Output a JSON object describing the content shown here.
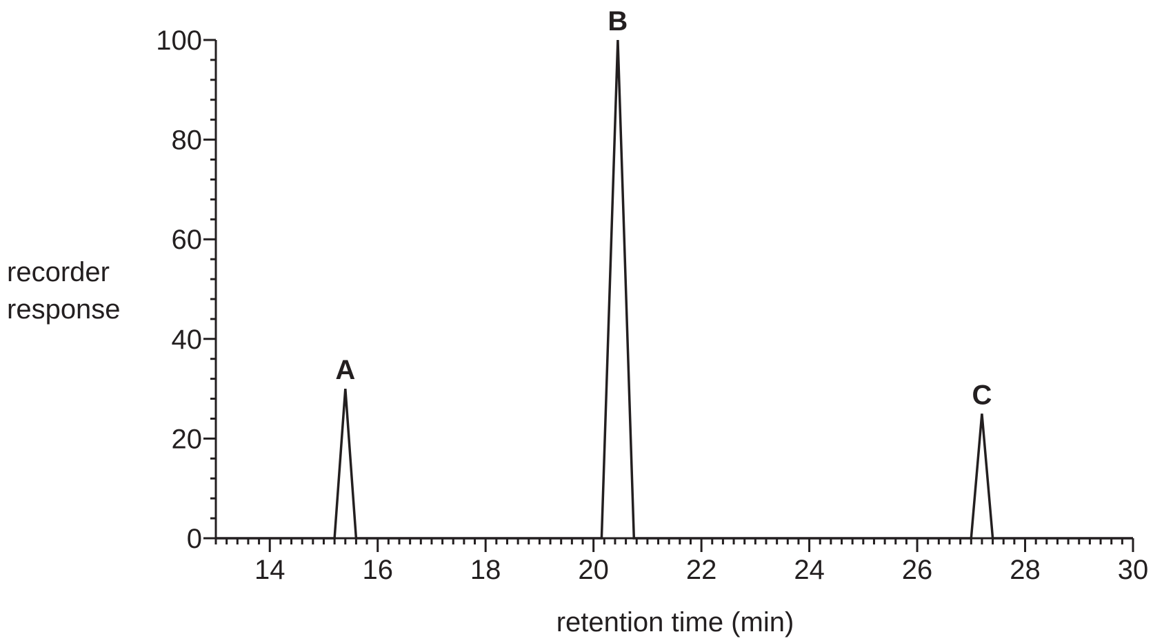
{
  "chart_data": {
    "type": "line",
    "title": "",
    "xlabel": "retention time (min)",
    "ylabel_lines": [
      "recorder",
      "response"
    ],
    "xlim": [
      13,
      30
    ],
    "ylim": [
      0,
      100
    ],
    "x_ticks": [
      14,
      16,
      18,
      20,
      22,
      24,
      26,
      28,
      30
    ],
    "y_ticks": [
      0,
      20,
      40,
      60,
      80,
      100
    ],
    "x_minor_step": 0.2,
    "y_minor_step": 4,
    "grid": false,
    "legend": "none",
    "line_color": "#231f20",
    "series": [
      {
        "x": [
          13,
          15.2,
          15.4,
          15.6,
          20.15,
          20.45,
          20.75,
          27.0,
          27.2,
          27.4,
          30
        ],
        "y": [
          0,
          0,
          30,
          0,
          0,
          100,
          0,
          0,
          25,
          0,
          0
        ]
      }
    ],
    "annotations": [
      {
        "text": "A",
        "x": 15.4,
        "y": 30
      },
      {
        "text": "B",
        "x": 20.45,
        "y": 100
      },
      {
        "text": "C",
        "x": 27.2,
        "y": 25
      }
    ]
  }
}
